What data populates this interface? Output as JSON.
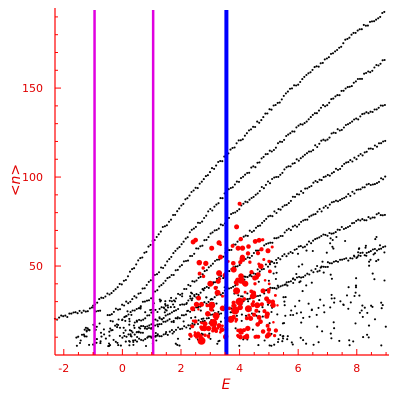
{
  "chart_data": {
    "type": "scatter",
    "title": "",
    "xlabel": "E",
    "ylabel": "<n>",
    "xlim": [
      -2.3,
      9.1
    ],
    "ylim": [
      0,
      195
    ],
    "x_ticks": [
      -2,
      0,
      2,
      4,
      6,
      8
    ],
    "y_ticks": [
      50,
      100,
      150
    ],
    "grid": false,
    "legend": "none",
    "colors": {
      "axis": "#ff0000",
      "black_points": "#000000",
      "red_points": "#ff0000",
      "magenta_line": "#e000e0",
      "blue_line": "#0000ff"
    },
    "vertical_lines": [
      {
        "x": -0.95,
        "color": "#e000e0"
      },
      {
        "x": 1.05,
        "color": "#e000e0"
      },
      {
        "x": 3.55,
        "color": "#0000ff"
      }
    ],
    "black_bands": [
      {
        "x": [
          -2.3,
          -1.5,
          -1.0,
          -0.7
        ],
        "y": [
          20,
          24,
          26,
          24
        ]
      },
      {
        "x": [
          -1.0,
          0.0,
          1.0,
          2.0,
          3.0,
          4.0,
          5.0,
          6.0,
          7.0,
          8.0,
          9.0
        ],
        "y": [
          28,
          40,
          63,
          84,
          103,
          120,
          137,
          153,
          167,
          182,
          193
        ]
      },
      {
        "x": [
          -0.5,
          0.5,
          1.5,
          2.5,
          3.5,
          4.5,
          5.5,
          6.5,
          7.5,
          8.5,
          9.0
        ],
        "y": [
          22,
          33,
          52,
          72,
          90,
          106,
          121,
          135,
          148,
          160,
          166
        ]
      },
      {
        "x": [
          0.0,
          1.0,
          2.0,
          3.0,
          4.0,
          5.0,
          6.0,
          7.0,
          8.0,
          9.0
        ],
        "y": [
          20,
          33,
          50,
          67,
          83,
          97,
          110,
          122,
          133,
          141
        ]
      },
      {
        "x": [
          0.5,
          1.5,
          2.5,
          3.5,
          4.5,
          5.5,
          6.5,
          7.5,
          8.5,
          9.0
        ],
        "y": [
          18,
          28,
          42,
          57,
          71,
          84,
          96,
          106,
          116,
          120
        ]
      },
      {
        "x": [
          0.5,
          1.5,
          2.5,
          3.5,
          4.5,
          5.5,
          6.5,
          7.5,
          8.5,
          9.0
        ],
        "y": [
          14,
          22,
          33,
          45,
          57,
          68,
          79,
          88,
          96,
          100
        ]
      },
      {
        "x": [
          0.0,
          1.0,
          2.0,
          3.0,
          4.0,
          5.0,
          6.0,
          7.0,
          8.0,
          9.0
        ],
        "y": [
          10,
          15,
          22,
          31,
          41,
          51,
          60,
          68,
          75,
          80
        ]
      },
      {
        "x": [
          0.5,
          1.5,
          2.5,
          3.5,
          4.5,
          5.5,
          6.5,
          7.5,
          8.5,
          9.0
        ],
        "y": [
          8,
          12,
          18,
          25,
          33,
          40,
          47,
          53,
          58,
          61
        ]
      }
    ],
    "black_scatter_box": {
      "x": [
        -1.6,
        9.0
      ],
      "y": [
        5,
        70
      ],
      "count": 380
    },
    "red_points": [
      {
        "x": 2.7,
        "y": 8,
        "size": 4
      },
      {
        "x": 3.1,
        "y": 18,
        "size": 4
      },
      {
        "x": 3.2,
        "y": 22,
        "size": 3.5
      },
      {
        "x": 3.05,
        "y": 28,
        "size": 3.5
      },
      {
        "x": 3.25,
        "y": 35,
        "size": 3
      },
      {
        "x": 3.0,
        "y": 40,
        "size": 3
      },
      {
        "x": 3.3,
        "y": 46,
        "size": 3
      },
      {
        "x": 3.35,
        "y": 55,
        "size": 2.5
      },
      {
        "x": 3.7,
        "y": 20,
        "size": 3.5
      },
      {
        "x": 3.85,
        "y": 25,
        "size": 4
      },
      {
        "x": 4.0,
        "y": 30,
        "size": 4
      },
      {
        "x": 3.9,
        "y": 36,
        "size": 3.5
      },
      {
        "x": 4.05,
        "y": 42,
        "size": 3.5
      },
      {
        "x": 3.8,
        "y": 48,
        "size": 3
      },
      {
        "x": 4.1,
        "y": 54,
        "size": 3
      },
      {
        "x": 3.95,
        "y": 60,
        "size": 2.5
      },
      {
        "x": 4.3,
        "y": 26,
        "size": 3.5
      },
      {
        "x": 4.45,
        "y": 33,
        "size": 3
      },
      {
        "x": 4.2,
        "y": 40,
        "size": 3
      },
      {
        "x": 4.6,
        "y": 28,
        "size": 3
      },
      {
        "x": 4.8,
        "y": 36,
        "size": 2.5
      },
      {
        "x": 5.0,
        "y": 30,
        "size": 2.5
      },
      {
        "x": 2.4,
        "y": 26,
        "size": 2.5
      },
      {
        "x": 2.6,
        "y": 32,
        "size": 2.5
      },
      {
        "x": 2.8,
        "y": 15,
        "size": 3
      },
      {
        "x": 3.05,
        "y": 60,
        "size": 2.5
      },
      {
        "x": 3.9,
        "y": 72,
        "size": 2.5
      },
      {
        "x": 4.0,
        "y": 85,
        "size": 2
      }
    ],
    "red_scatter_box": {
      "x": [
        2.3,
        5.3
      ],
      "y": [
        10,
        90
      ],
      "count": 160
    }
  }
}
